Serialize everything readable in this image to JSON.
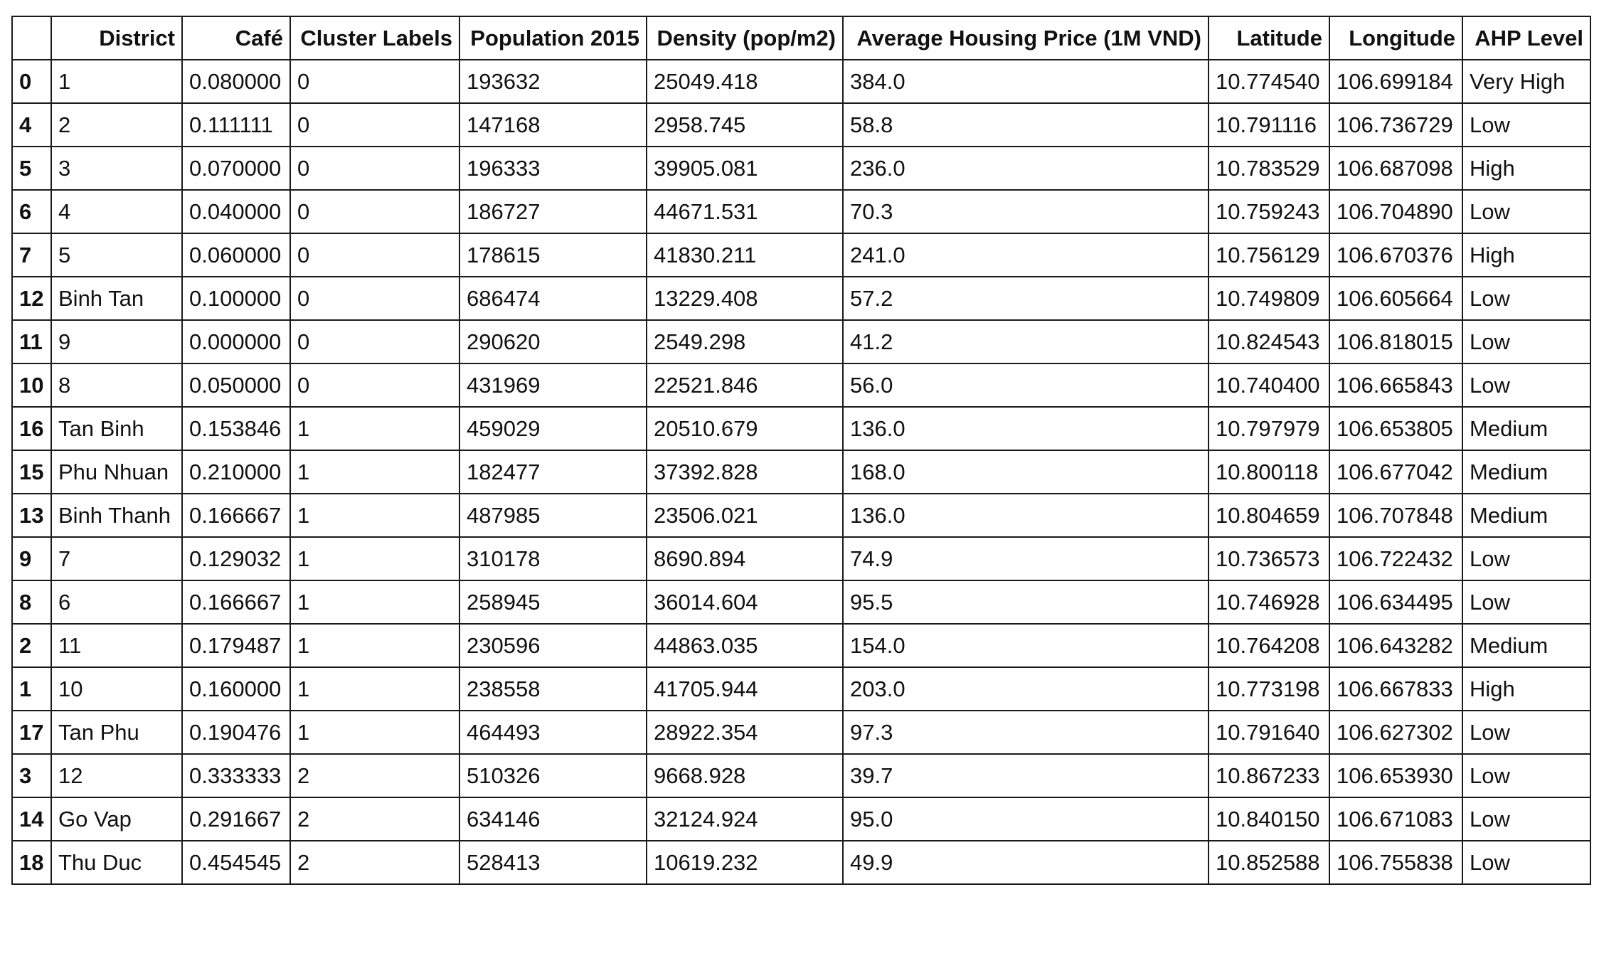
{
  "table": {
    "columns": [
      "",
      "District",
      "Café",
      "Cluster Labels",
      "Population 2015",
      "Density (pop/m2)",
      "Average Housing Price (1M VND)",
      "Latitude",
      "Longitude",
      "AHP Level"
    ],
    "rows": [
      {
        "index": "0",
        "cells": [
          "1",
          "0.080000",
          "0",
          "193632",
          "25049.418",
          "384.0",
          "10.774540",
          "106.699184",
          "Very High"
        ]
      },
      {
        "index": "4",
        "cells": [
          "2",
          "0.111111",
          "0",
          "147168",
          "2958.745",
          "58.8",
          "10.791116",
          "106.736729",
          "Low"
        ]
      },
      {
        "index": "5",
        "cells": [
          "3",
          "0.070000",
          "0",
          "196333",
          "39905.081",
          "236.0",
          "10.783529",
          "106.687098",
          "High"
        ]
      },
      {
        "index": "6",
        "cells": [
          "4",
          "0.040000",
          "0",
          "186727",
          "44671.531",
          "70.3",
          "10.759243",
          "106.704890",
          "Low"
        ]
      },
      {
        "index": "7",
        "cells": [
          "5",
          "0.060000",
          "0",
          "178615",
          "41830.211",
          "241.0",
          "10.756129",
          "106.670376",
          "High"
        ]
      },
      {
        "index": "12",
        "cells": [
          "Binh Tan",
          "0.100000",
          "0",
          "686474",
          "13229.408",
          "57.2",
          "10.749809",
          "106.605664",
          "Low"
        ]
      },
      {
        "index": "11",
        "cells": [
          "9",
          "0.000000",
          "0",
          "290620",
          "2549.298",
          "41.2",
          "10.824543",
          "106.818015",
          "Low"
        ]
      },
      {
        "index": "10",
        "cells": [
          "8",
          "0.050000",
          "0",
          "431969",
          "22521.846",
          "56.0",
          "10.740400",
          "106.665843",
          "Low"
        ]
      },
      {
        "index": "16",
        "cells": [
          "Tan Binh",
          "0.153846",
          "1",
          "459029",
          "20510.679",
          "136.0",
          "10.797979",
          "106.653805",
          "Medium"
        ]
      },
      {
        "index": "15",
        "cells": [
          "Phu Nhuan",
          "0.210000",
          "1",
          "182477",
          "37392.828",
          "168.0",
          "10.800118",
          "106.677042",
          "Medium"
        ]
      },
      {
        "index": "13",
        "cells": [
          "Binh Thanh",
          "0.166667",
          "1",
          "487985",
          "23506.021",
          "136.0",
          "10.804659",
          "106.707848",
          "Medium"
        ]
      },
      {
        "index": "9",
        "cells": [
          "7",
          "0.129032",
          "1",
          "310178",
          "8690.894",
          "74.9",
          "10.736573",
          "106.722432",
          "Low"
        ]
      },
      {
        "index": "8",
        "cells": [
          "6",
          "0.166667",
          "1",
          "258945",
          "36014.604",
          "95.5",
          "10.746928",
          "106.634495",
          "Low"
        ]
      },
      {
        "index": "2",
        "cells": [
          "11",
          "0.179487",
          "1",
          "230596",
          "44863.035",
          "154.0",
          "10.764208",
          "106.643282",
          "Medium"
        ]
      },
      {
        "index": "1",
        "cells": [
          "10",
          "0.160000",
          "1",
          "238558",
          "41705.944",
          "203.0",
          "10.773198",
          "106.667833",
          "High"
        ]
      },
      {
        "index": "17",
        "cells": [
          "Tan Phu",
          "0.190476",
          "1",
          "464493",
          "28922.354",
          "97.3",
          "10.791640",
          "106.627302",
          "Low"
        ]
      },
      {
        "index": "3",
        "cells": [
          "12",
          "0.333333",
          "2",
          "510326",
          "9668.928",
          "39.7",
          "10.867233",
          "106.653930",
          "Low"
        ]
      },
      {
        "index": "14",
        "cells": [
          "Go Vap",
          "0.291667",
          "2",
          "634146",
          "32124.924",
          "95.0",
          "10.840150",
          "106.671083",
          "Low"
        ]
      },
      {
        "index": "18",
        "cells": [
          "Thu Duc",
          "0.454545",
          "2",
          "528413",
          "10619.232",
          "49.9",
          "10.852588",
          "106.755838",
          "Low"
        ]
      }
    ]
  }
}
